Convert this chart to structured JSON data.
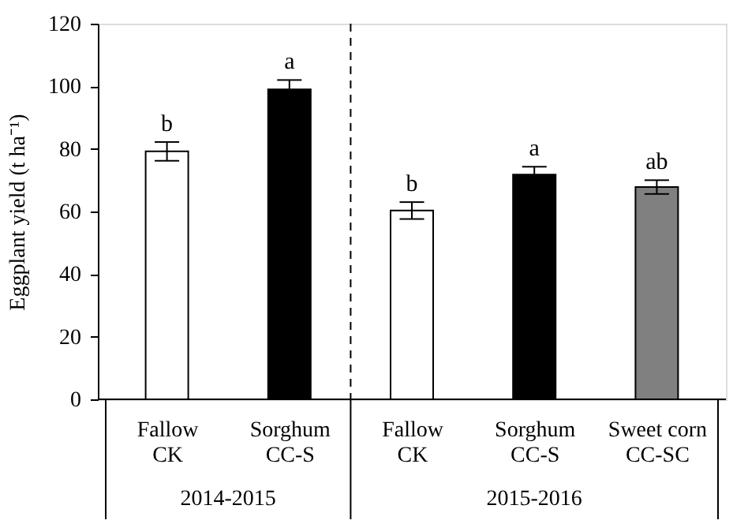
{
  "chart_data": {
    "type": "bar",
    "ylabel": "Eggplant yield (t ha⁻¹)",
    "categories": [
      "Fallow\nCK",
      "Sorghum\nCC-S",
      "Fallow\nCK",
      "Sorghum\nCC-S",
      "Sweet corn\nCC-SC"
    ],
    "values": [
      79.2,
      99,
      60.3,
      71.8,
      67.8
    ],
    "colors": [
      "#ffffff",
      "#000000",
      "#ffffff",
      "#000000",
      "#808080"
    ],
    "errors": [
      3,
      3,
      2.7,
      2.5,
      2.2
    ],
    "value_labels": [
      "b",
      "a",
      "b",
      "a",
      "ab"
    ],
    "ylim": [
      0,
      120
    ],
    "yticks": [
      0,
      20,
      40,
      60,
      80,
      100,
      120
    ],
    "annotations": [
      "2014-2015",
      "2015-2016"
    ],
    "grid": false
  }
}
